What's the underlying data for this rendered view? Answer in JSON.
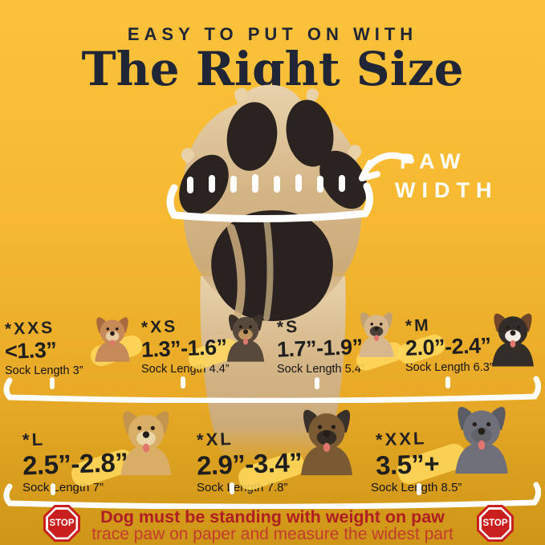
{
  "header": {
    "kicker": "EASY TO PUT ON WITH",
    "title": "The Right Size"
  },
  "paw": {
    "label_line1": "PAW",
    "label_line2": "WIDTH",
    "graphic": "upside-down-dog-paw-photo-with-hand-drawn-width-bracket"
  },
  "sizes": {
    "items": [
      {
        "size": "*XXS",
        "range": "<1.3”",
        "sock": "Sock Length 3”",
        "breed": "chihuahua"
      },
      {
        "size": "*XS",
        "range": "1.3”-1.6”",
        "sock": "Sock Length 4.4”",
        "breed": "yorkshire-terrier-puppy"
      },
      {
        "size": "*S",
        "range": "1.7”-1.9”",
        "sock": "Sock Length 5.4”",
        "breed": "french-bulldog"
      },
      {
        "size": "*M",
        "range": "2.0”-2.4”",
        "sock": "Sock Length 6.3”",
        "breed": "australian-shepherd"
      },
      {
        "size": "*L",
        "range": "2.5”-2.8”",
        "sock": "Sock Length 7”",
        "breed": "golden-retriever"
      },
      {
        "size": "*XL",
        "range": "2.9”-3.4”",
        "sock": "Sock Length 7.8”",
        "breed": "german-shepherd"
      },
      {
        "size": "*XXL",
        "range": "3.5”+",
        "sock": "Sock Length 8.5”",
        "breed": "great-dane"
      }
    ]
  },
  "dogs": [
    {
      "name": "chihuahua",
      "body": "#C68A58",
      "ear": "#A96B3E",
      "muzzle": "#E9CBA2"
    },
    {
      "name": "yorkshire-terrier-puppy",
      "body": "#57493B",
      "ear": "#3C322A",
      "muzzle": "#BD935F"
    },
    {
      "name": "french-bulldog",
      "body": "#D8B78C",
      "ear": "#C2A075",
      "muzzle": "#4A403A"
    },
    {
      "name": "australian-shepherd",
      "body": "#332D29",
      "ear": "#70462A",
      "muzzle": "#F1EDE4"
    },
    {
      "name": "golden-retriever",
      "body": "#D9AE66",
      "ear": "#C3954C",
      "muzzle": "#EBD6A8"
    },
    {
      "name": "german-shepherd",
      "body": "#7A5A32",
      "ear": "#39302A",
      "muzzle": "#332B24"
    },
    {
      "name": "great-dane",
      "body": "#70707A",
      "ear": "#5B5B64",
      "muzzle": "#63636C"
    }
  ],
  "footer": {
    "stop_label": "STOP",
    "line1": "Dog must be standing with weight on paw",
    "line2": "trace paw on paper and measure the widest part"
  },
  "colors": {
    "bg_top": "#FCC23B",
    "bg_bottom": "#CE9517",
    "ink": "#202636",
    "white": "#FFFFFF",
    "red_bold": "#AE1E23",
    "red_light": "#C23B2E",
    "stop_red": "#C9201F",
    "brush": "#FFD95E",
    "paw_fur": "#D9BC90",
    "paw_pad": "#2A2320"
  }
}
